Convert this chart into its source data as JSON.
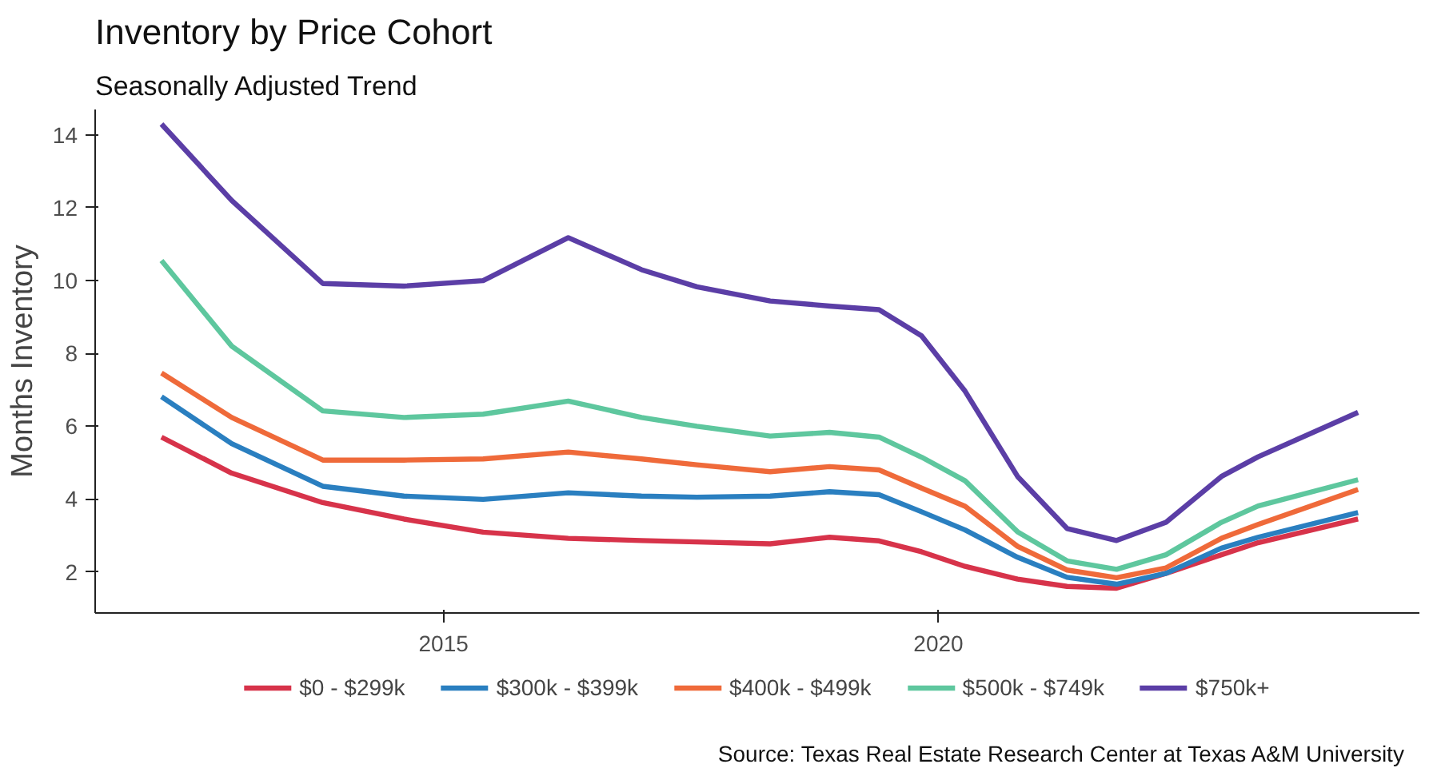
{
  "chart_data": {
    "type": "line",
    "title": "Inventory by Price Cohort",
    "subtitle": "Seasonally Adjusted Trend",
    "ylabel": "Months Inventory",
    "annotations": [
      "Source: Texas Real Estate Research Center at Texas A&M University"
    ],
    "x": [
      2012.15,
      2012.86,
      2013.78,
      2014.6,
      2015.4,
      2016.26,
      2017.0,
      2017.56,
      2018.3,
      2018.9,
      2019.4,
      2019.83,
      2020.27,
      2020.8,
      2021.3,
      2021.8,
      2022.3,
      2022.86,
      2023.23,
      2024.24
    ],
    "series": [
      {
        "name": "$0 - $299k",
        "color": "#d7334a",
        "values": [
          5.7,
          4.71,
          3.9,
          3.45,
          3.09,
          2.92,
          2.86,
          2.82,
          2.77,
          2.95,
          2.85,
          2.55,
          2.15,
          1.8,
          1.6,
          1.55,
          1.96,
          2.47,
          2.8,
          3.45
        ]
      },
      {
        "name": "$300k - $399k",
        "color": "#2a7fc0",
        "values": [
          6.81,
          5.52,
          4.35,
          4.08,
          3.99,
          4.17,
          4.08,
          4.05,
          4.08,
          4.2,
          4.12,
          3.65,
          3.15,
          2.4,
          1.85,
          1.66,
          1.96,
          2.65,
          2.95,
          3.63
        ]
      },
      {
        "name": "$400k - $499k",
        "color": "#ef6a3a",
        "values": [
          7.46,
          6.24,
          5.07,
          5.07,
          5.1,
          5.29,
          5.1,
          4.94,
          4.75,
          4.89,
          4.8,
          4.3,
          3.8,
          2.7,
          2.05,
          1.84,
          2.11,
          2.92,
          3.3,
          4.26
        ]
      },
      {
        "name": "$500k - $749k",
        "color": "#5ec79e",
        "values": [
          10.55,
          8.2,
          6.42,
          6.24,
          6.33,
          6.69,
          6.24,
          6.0,
          5.73,
          5.83,
          5.7,
          5.15,
          4.5,
          3.1,
          2.3,
          2.07,
          2.47,
          3.36,
          3.81,
          4.53
        ]
      },
      {
        "name": "$750k+",
        "color": "#5b3ea6",
        "values": [
          14.3,
          12.2,
          9.92,
          9.85,
          10.0,
          11.18,
          10.3,
          9.83,
          9.44,
          9.3,
          9.2,
          8.48,
          6.96,
          4.62,
          3.19,
          2.86,
          3.36,
          4.62,
          5.16,
          6.38
        ]
      }
    ],
    "xlim": [
      2011.48,
      2024.86
    ],
    "ylim": [
      0.87,
      14.7
    ],
    "xticks": [
      2015,
      2020
    ],
    "yticks": [
      2,
      4,
      6,
      8,
      10,
      12,
      14
    ],
    "grid": false,
    "legend": "bottom",
    "marker": "none",
    "line_style": "solid"
  }
}
